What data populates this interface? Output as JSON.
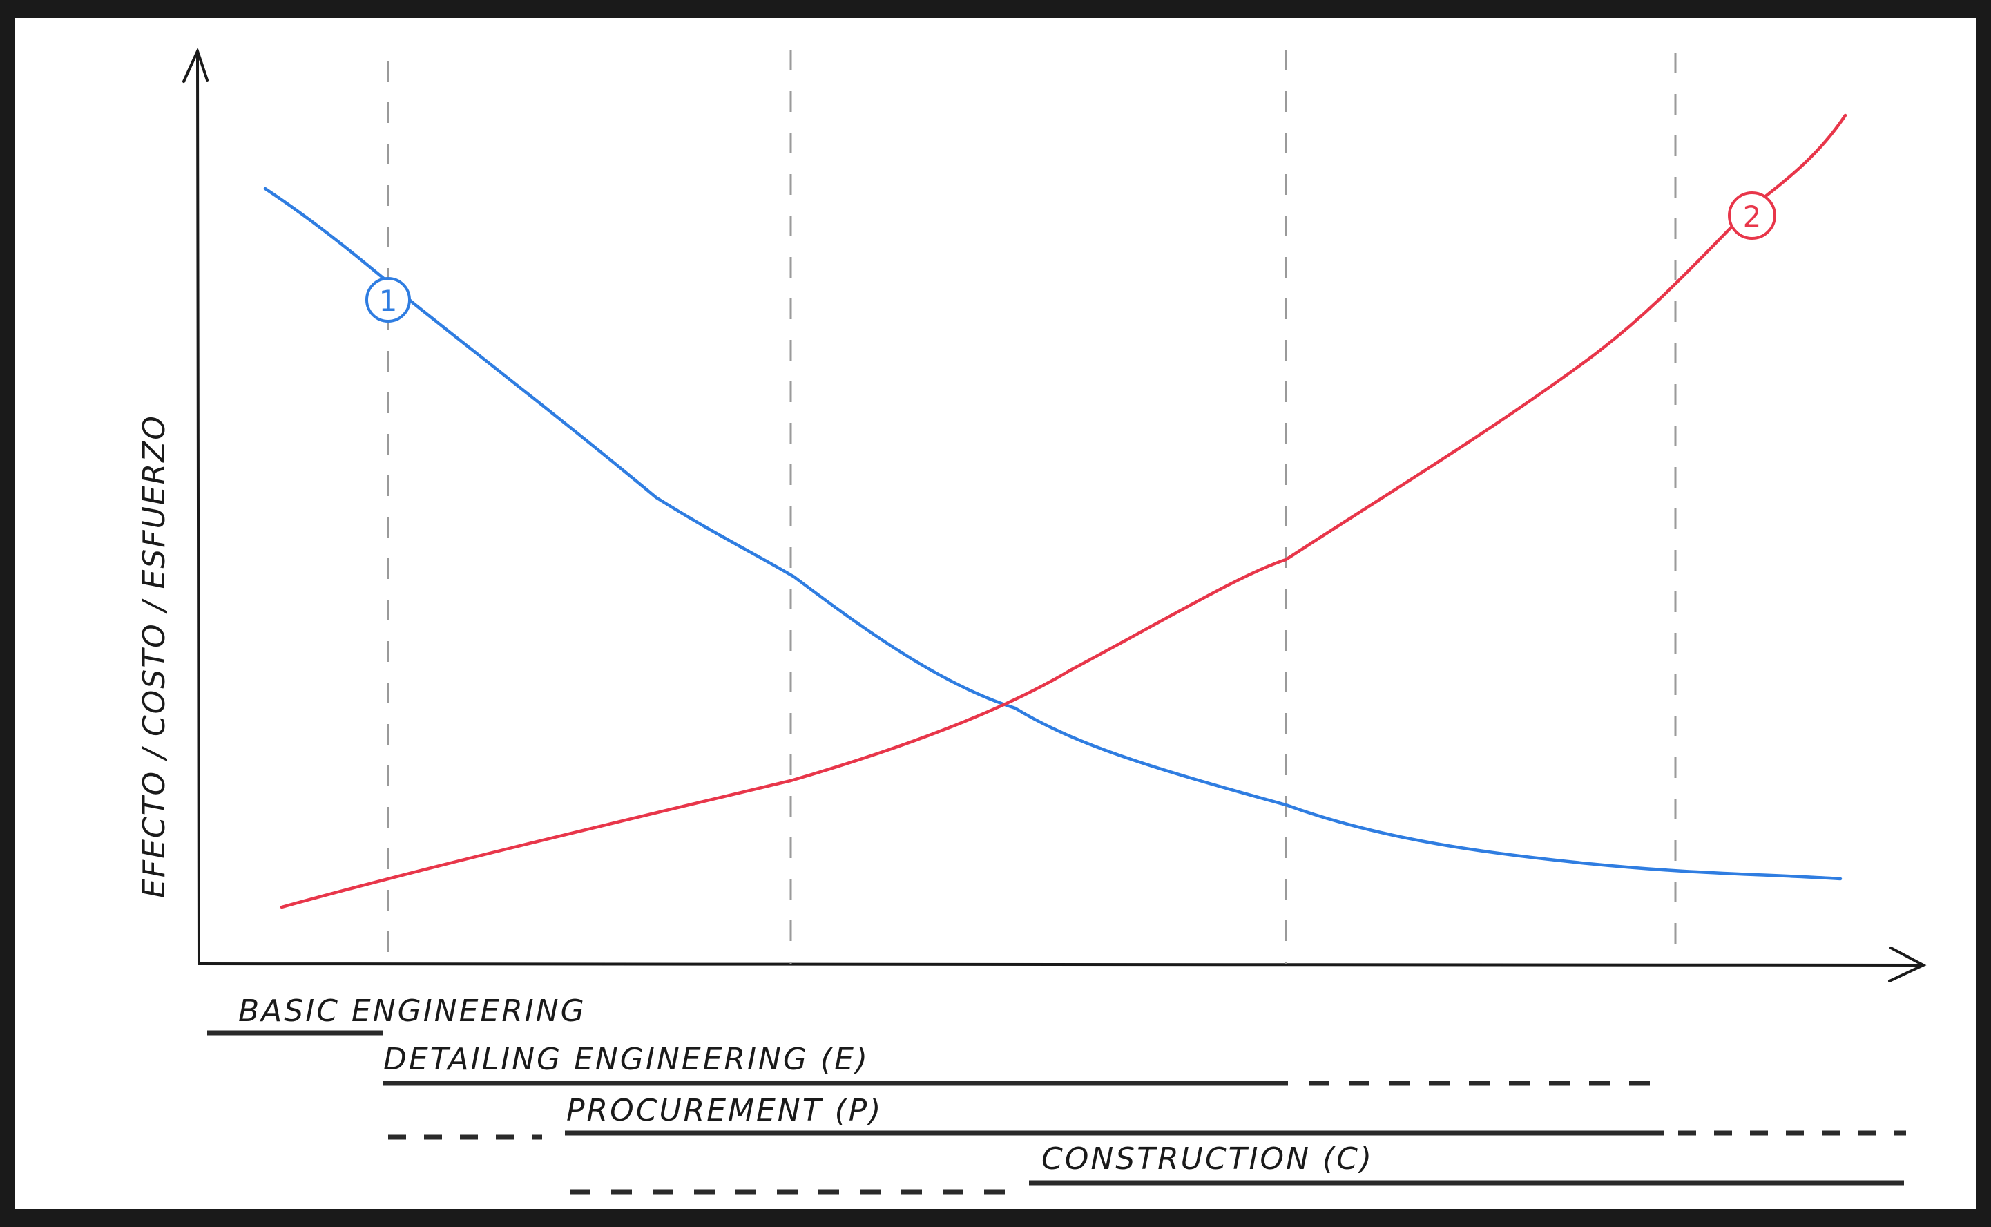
{
  "diagram": {
    "y_axis_label": "EFECTO / COSTO / ESFUERZO",
    "curves": [
      {
        "id": "1",
        "color": "#2f7de1"
      },
      {
        "id": "2",
        "color": "#e8364a"
      }
    ],
    "phases": [
      {
        "label": "BASIC ENGINEERING"
      },
      {
        "label": "DETAILING ENGINEERING (E)"
      },
      {
        "label": "PROCUREMENT (P)"
      },
      {
        "label": "CONSTRUCTION (C)"
      }
    ]
  }
}
